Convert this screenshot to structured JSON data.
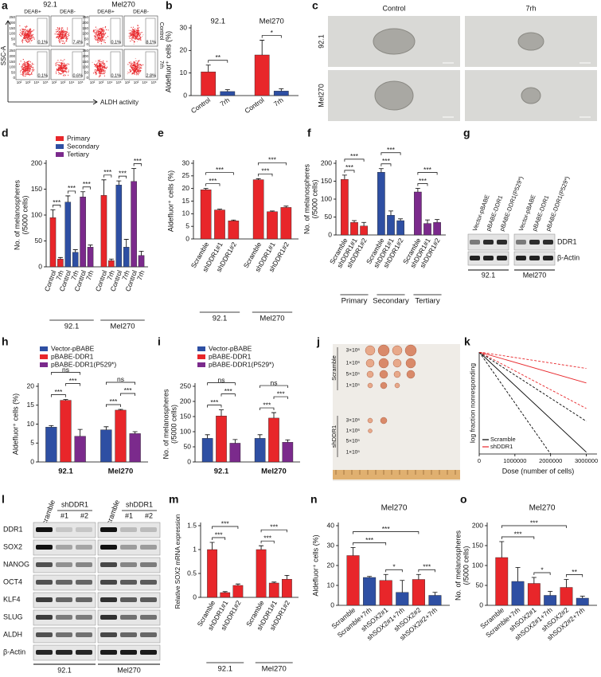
{
  "flow": {
    "panel": "a",
    "cell_lines": [
      "92.1",
      "Mel270"
    ],
    "conditions": [
      "DEAB+",
      "DEAB-",
      "DEAB+",
      "DEAB-"
    ],
    "rows": [
      "Control",
      "7rh"
    ],
    "percentages": [
      [
        "0.1%",
        "7.4%",
        "0.1%",
        "8.1%"
      ],
      [
        "0.1%",
        "0.6%",
        "0.1%",
        "2.8%"
      ]
    ],
    "y_axis": "SSC-A",
    "x_axis": "ALDH activity",
    "yticks": [
      "0",
      "50",
      "100",
      "150",
      "200",
      "250"
    ],
    "xticks": [
      "10²",
      "10³",
      "10⁴",
      "10⁵"
    ]
  },
  "spheres": {
    "panel": "c",
    "columns": [
      "Control",
      "7rh"
    ],
    "rows": [
      "92.1",
      "Mel270"
    ]
  },
  "blot_g": {
    "panel": "g",
    "lanes": [
      "Vector-pBABE",
      "pBABE-DDR1",
      "pBABE-DDR1(P529*)"
    ],
    "bands": [
      "DDR1",
      "β-Actin"
    ],
    "groups": [
      "92.1",
      "Mel270"
    ]
  },
  "tumors": {
    "panel": "j",
    "rows": [
      "Scramble",
      "shDDR1"
    ],
    "doses": [
      "3×10⁶",
      "1×10⁶",
      "5×10⁵",
      "1×10⁵"
    ]
  },
  "blot_l": {
    "panel": "l",
    "header": [
      "Scramble",
      "shDDR1",
      "#1",
      "#2"
    ],
    "groups": [
      "92.1",
      "Mel270"
    ],
    "bands": [
      "DDR1",
      "SOX2",
      "NANOG",
      "OCT4",
      "KLF4",
      "SLUG",
      "ALDH",
      "β-Actin"
    ]
  },
  "chart_data": [
    {
      "type": "bar",
      "panel": "b",
      "ylabel": [
        "Aldefluor⁺ cells (%)"
      ],
      "ylim": [
        0,
        30
      ],
      "yticks": [
        0,
        10,
        20,
        30
      ],
      "categories": [
        "Control",
        "7rh",
        "Control",
        "7rh"
      ],
      "values": [
        10.5,
        1.8,
        18,
        2
      ],
      "errors": [
        3,
        0.8,
        6.5,
        1
      ],
      "colors": [
        "#e8262a",
        "#2e4fa3",
        "#e8262a",
        "#2e4fa3"
      ],
      "groups": [
        "92.1",
        "Mel270"
      ],
      "annotations": [
        {
          "text": "**",
          "bars": [
            0,
            1
          ]
        },
        {
          "text": "*",
          "bars": [
            2,
            3
          ]
        }
      ]
    },
    {
      "type": "bar",
      "panel": "d",
      "ylabel": [
        "No. of melanospheres",
        "(/5000 cells)"
      ],
      "ylim": [
        0,
        200
      ],
      "yticks": [
        0,
        50,
        100,
        150,
        200
      ],
      "categories": [
        "Control",
        "7rh",
        "Control",
        "7rh",
        "Control",
        "7rh",
        "Control",
        "7rh",
        "Control",
        "7rh",
        "Control",
        "7rh"
      ],
      "values": [
        95,
        15,
        125,
        28,
        135,
        38,
        138,
        12,
        158,
        38,
        165,
        22
      ],
      "errors": [
        15,
        3,
        12,
        5,
        10,
        4,
        30,
        3,
        8,
        15,
        25,
        8
      ],
      "colors": [
        "#e8262a",
        "#e8262a",
        "#2e4fa3",
        "#2e4fa3",
        "#7b2a8c",
        "#7b2a8c",
        "#e8262a",
        "#e8262a",
        "#2e4fa3",
        "#2e4fa3",
        "#7b2a8c",
        "#7b2a8c"
      ],
      "groups": [
        "92.1",
        "Mel270"
      ],
      "legend": [
        {
          "name": "Primary",
          "color": "#e8262a"
        },
        {
          "name": "Secondary",
          "color": "#2e4fa3"
        },
        {
          "name": "Tertiary",
          "color": "#7b2a8c"
        }
      ],
      "annotations": [
        {
          "text": "***",
          "bars": [
            0,
            1
          ]
        },
        {
          "text": "***",
          "bars": [
            2,
            3
          ]
        },
        {
          "text": "***",
          "bars": [
            4,
            5
          ]
        },
        {
          "text": "***",
          "bars": [
            6,
            7
          ]
        },
        {
          "text": "***",
          "bars": [
            8,
            9
          ]
        },
        {
          "text": "***",
          "bars": [
            10,
            11
          ]
        }
      ]
    },
    {
      "type": "bar",
      "panel": "e",
      "ylabel": [
        "Aldefluor⁺ cells (%)"
      ],
      "ylim": [
        0,
        30
      ],
      "yticks": [
        0,
        5,
        10,
        15,
        20,
        25,
        30
      ],
      "categories": [
        "Scramble",
        "shDDR1#1",
        "shDDR1#2",
        "Scramble",
        "shDDR1#1",
        "shDDR1#2"
      ],
      "values": [
        19.5,
        11.5,
        7.2,
        23.5,
        10.8,
        12.5
      ],
      "errors": [
        0.5,
        0.3,
        0.3,
        0.4,
        0.3,
        0.5
      ],
      "colors": [
        "#e8262a",
        "#e8262a",
        "#e8262a",
        "#e8262a",
        "#e8262a",
        "#e8262a"
      ],
      "groups": [
        "92.1",
        "Mel270"
      ],
      "annotations": [
        {
          "text": "***",
          "bars": [
            0,
            1
          ]
        },
        {
          "text": "***",
          "bars": [
            0,
            2
          ]
        },
        {
          "text": "***",
          "bars": [
            3,
            4
          ]
        },
        {
          "text": "***",
          "bars": [
            3,
            5
          ]
        }
      ]
    },
    {
      "type": "bar",
      "panel": "f",
      "ylabel": [
        "No. of melanospheres",
        "(/5000 cells)"
      ],
      "ylim": [
        0,
        200
      ],
      "yticks": [
        0,
        50,
        100,
        150,
        200
      ],
      "categories": [
        "Scramble",
        "shDDR1#1",
        "shDDR1#2",
        "Scramble",
        "shDDR1#1",
        "shDDR1#2",
        "Scramble",
        "shDDR1#1",
        "shDDR1#2"
      ],
      "values": [
        155,
        35,
        25,
        175,
        55,
        40,
        120,
        32,
        35
      ],
      "errors": [
        12,
        5,
        10,
        10,
        12,
        5,
        10,
        10,
        8
      ],
      "colors": [
        "#e8262a",
        "#e8262a",
        "#e8262a",
        "#2e4fa3",
        "#2e4fa3",
        "#2e4fa3",
        "#7b2a8c",
        "#7b2a8c",
        "#7b2a8c"
      ],
      "groups": [
        "Primary",
        "Secondary",
        "Tertiary"
      ],
      "annotations": [
        {
          "text": "***",
          "bars": [
            0,
            1
          ]
        },
        {
          "text": "***",
          "bars": [
            0,
            2
          ]
        },
        {
          "text": "***",
          "bars": [
            3,
            4
          ]
        },
        {
          "text": "***",
          "bars": [
            3,
            5
          ]
        },
        {
          "text": "***",
          "bars": [
            6,
            7
          ]
        },
        {
          "text": "***",
          "bars": [
            6,
            8
          ]
        }
      ]
    },
    {
      "type": "bar",
      "panel": "h",
      "ylabel": [
        "Aldefluor⁺ cells (%)"
      ],
      "ylim": [
        0,
        20
      ],
      "yticks": [
        0,
        5,
        10,
        15,
        20
      ],
      "values": [
        9.2,
        16.3,
        6.8,
        8.5,
        13.7,
        7.5
      ],
      "errors": [
        0.4,
        0.2,
        1.8,
        0.8,
        0.2,
        0.5
      ],
      "colors": [
        "#2e4fa3",
        "#e8262a",
        "#7b2a8c",
        "#2e4fa3",
        "#e8262a",
        "#7b2a8c"
      ],
      "groups": [
        "92.1",
        "Mel270"
      ],
      "legend": [
        {
          "name": "Vector-pBABE",
          "color": "#2e4fa3"
        },
        {
          "name": "pBABE-DDR1",
          "color": "#e8262a"
        },
        {
          "name": "pBABE-DDR1(P529*)",
          "color": "#7b2a8c"
        }
      ],
      "annotations": [
        {
          "text": "***",
          "bars": [
            0,
            1
          ]
        },
        {
          "text": "***",
          "bars": [
            1,
            2
          ]
        },
        {
          "text": "ns",
          "bars": [
            0,
            2
          ]
        },
        {
          "text": "***",
          "bars": [
            3,
            4
          ]
        },
        {
          "text": "***",
          "bars": [
            4,
            5
          ]
        },
        {
          "text": "ns",
          "bars": [
            3,
            5
          ]
        }
      ]
    },
    {
      "type": "bar",
      "panel": "i",
      "ylabel": [
        "No. of melanospheres",
        "(/5000 cells)"
      ],
      "ylim": [
        0,
        250
      ],
      "yticks": [
        0,
        50,
        100,
        150,
        200,
        250
      ],
      "values": [
        78,
        152,
        62,
        78,
        145,
        65
      ],
      "errors": [
        12,
        20,
        12,
        12,
        18,
        8
      ],
      "colors": [
        "#2e4fa3",
        "#e8262a",
        "#7b2a8c",
        "#2e4fa3",
        "#e8262a",
        "#7b2a8c"
      ],
      "groups": [
        "92.1",
        "Mel270"
      ],
      "legend": [
        {
          "name": "Vector-pBABE",
          "color": "#2e4fa3"
        },
        {
          "name": "pBABE-DDR1",
          "color": "#e8262a"
        },
        {
          "name": "pBABE-DDR1(P529*)",
          "color": "#7b2a8c"
        }
      ],
      "annotations": [
        {
          "text": "***",
          "bars": [
            0,
            1
          ]
        },
        {
          "text": "***",
          "bars": [
            1,
            2
          ]
        },
        {
          "text": "ns",
          "bars": [
            0,
            2
          ]
        },
        {
          "text": "***",
          "bars": [
            3,
            4
          ]
        },
        {
          "text": "***",
          "bars": [
            4,
            5
          ]
        },
        {
          "text": "ns",
          "bars": [
            3,
            5
          ]
        }
      ]
    },
    {
      "type": "bar",
      "panel": "m",
      "ylabel": [
        "Relative SOX2 mRNA expression"
      ],
      "ylim": [
        0,
        1.5
      ],
      "yticks": [
        0,
        0.5,
        1,
        1.5
      ],
      "categories": [
        "Scramble",
        "shDDR1#1",
        "shDDR1#2",
        "Scramble",
        "shDDR1#1",
        "shDDR1#2"
      ],
      "values": [
        1.0,
        0.1,
        0.25,
        1.0,
        0.3,
        0.38
      ],
      "errors": [
        0.15,
        0.02,
        0.03,
        0.08,
        0.02,
        0.08
      ],
      "colors": [
        "#e8262a",
        "#e8262a",
        "#e8262a",
        "#e8262a",
        "#e8262a",
        "#e8262a"
      ],
      "groups": [
        "92.1",
        "Mel270"
      ],
      "annotations": [
        {
          "text": "***",
          "bars": [
            0,
            1
          ]
        },
        {
          "text": "***",
          "bars": [
            0,
            2
          ]
        },
        {
          "text": "***",
          "bars": [
            3,
            4
          ]
        },
        {
          "text": "***",
          "bars": [
            3,
            5
          ]
        }
      ]
    },
    {
      "type": "bar",
      "panel": "n",
      "title": "Mel270",
      "ylabel": [
        "Aldefluor⁺ cells (%)"
      ],
      "ylim": [
        0,
        40
      ],
      "yticks": [
        0,
        10,
        20,
        30,
        40
      ],
      "categories": [
        "Scramble",
        "Scramble+7rh",
        "shSOX2#1",
        "shSOX2#1+7rh",
        "shSOX2#2",
        "shSOX2#2+7rh"
      ],
      "values": [
        25,
        14,
        12.5,
        6.5,
        13,
        5
      ],
      "errors": [
        4,
        0.5,
        3,
        6,
        2.5,
        1.5
      ],
      "colors": [
        "#e8262a",
        "#2e4fa3",
        "#e8262a",
        "#2e4fa3",
        "#e8262a",
        "#2e4fa3"
      ],
      "annotations": [
        {
          "text": "*",
          "bars": [
            2,
            3
          ]
        },
        {
          "text": "***",
          "bars": [
            4,
            5
          ]
        },
        {
          "text": "***",
          "bars": [
            0,
            2
          ]
        },
        {
          "text": "***",
          "bars": [
            0,
            4
          ]
        }
      ]
    },
    {
      "type": "bar",
      "panel": "o",
      "title": "Mel270",
      "ylabel": [
        "No. of melanospheres",
        "(/5000 cells)"
      ],
      "ylim": [
        0,
        200
      ],
      "yticks": [
        0,
        50,
        100,
        150,
        200
      ],
      "categories": [
        "Scramble",
        "Scramble+7rh",
        "shSOX2#1",
        "shSOX2#1+7rh",
        "shSOX2#2",
        "shSOX2#2+7rh"
      ],
      "values": [
        120,
        60,
        55,
        25,
        45,
        18
      ],
      "errors": [
        40,
        35,
        15,
        10,
        20,
        5
      ],
      "colors": [
        "#e8262a",
        "#2e4fa3",
        "#e8262a",
        "#2e4fa3",
        "#e8262a",
        "#2e4fa3"
      ],
      "annotations": [
        {
          "text": "*",
          "bars": [
            2,
            3
          ]
        },
        {
          "text": "**",
          "bars": [
            4,
            5
          ]
        },
        {
          "text": "***",
          "bars": [
            0,
            2
          ]
        },
        {
          "text": "***",
          "bars": [
            0,
            4
          ]
        }
      ]
    },
    {
      "type": "line",
      "panel": "k",
      "ylabel": "log fraction nonresponding",
      "xlabel": "Dose (number of cells)",
      "x": [
        0,
        3000000
      ],
      "xlim": [
        0,
        3300000
      ],
      "xticks": [
        0,
        1000000,
        2000000,
        3000000
      ],
      "ylim": [
        -2.8,
        0
      ],
      "series": [
        {
          "name": "Scramble",
          "color": "#000000",
          "values": [
            0,
            -2.75
          ],
          "lower": [
            0,
            -4.2
          ],
          "upper": [
            0,
            -1.9
          ]
        },
        {
          "name": "shDDR1",
          "color": "#e8262a",
          "values": [
            0,
            -0.85
          ],
          "lower": [
            0,
            -1.55
          ],
          "upper": [
            0,
            -0.45
          ]
        }
      ]
    }
  ]
}
